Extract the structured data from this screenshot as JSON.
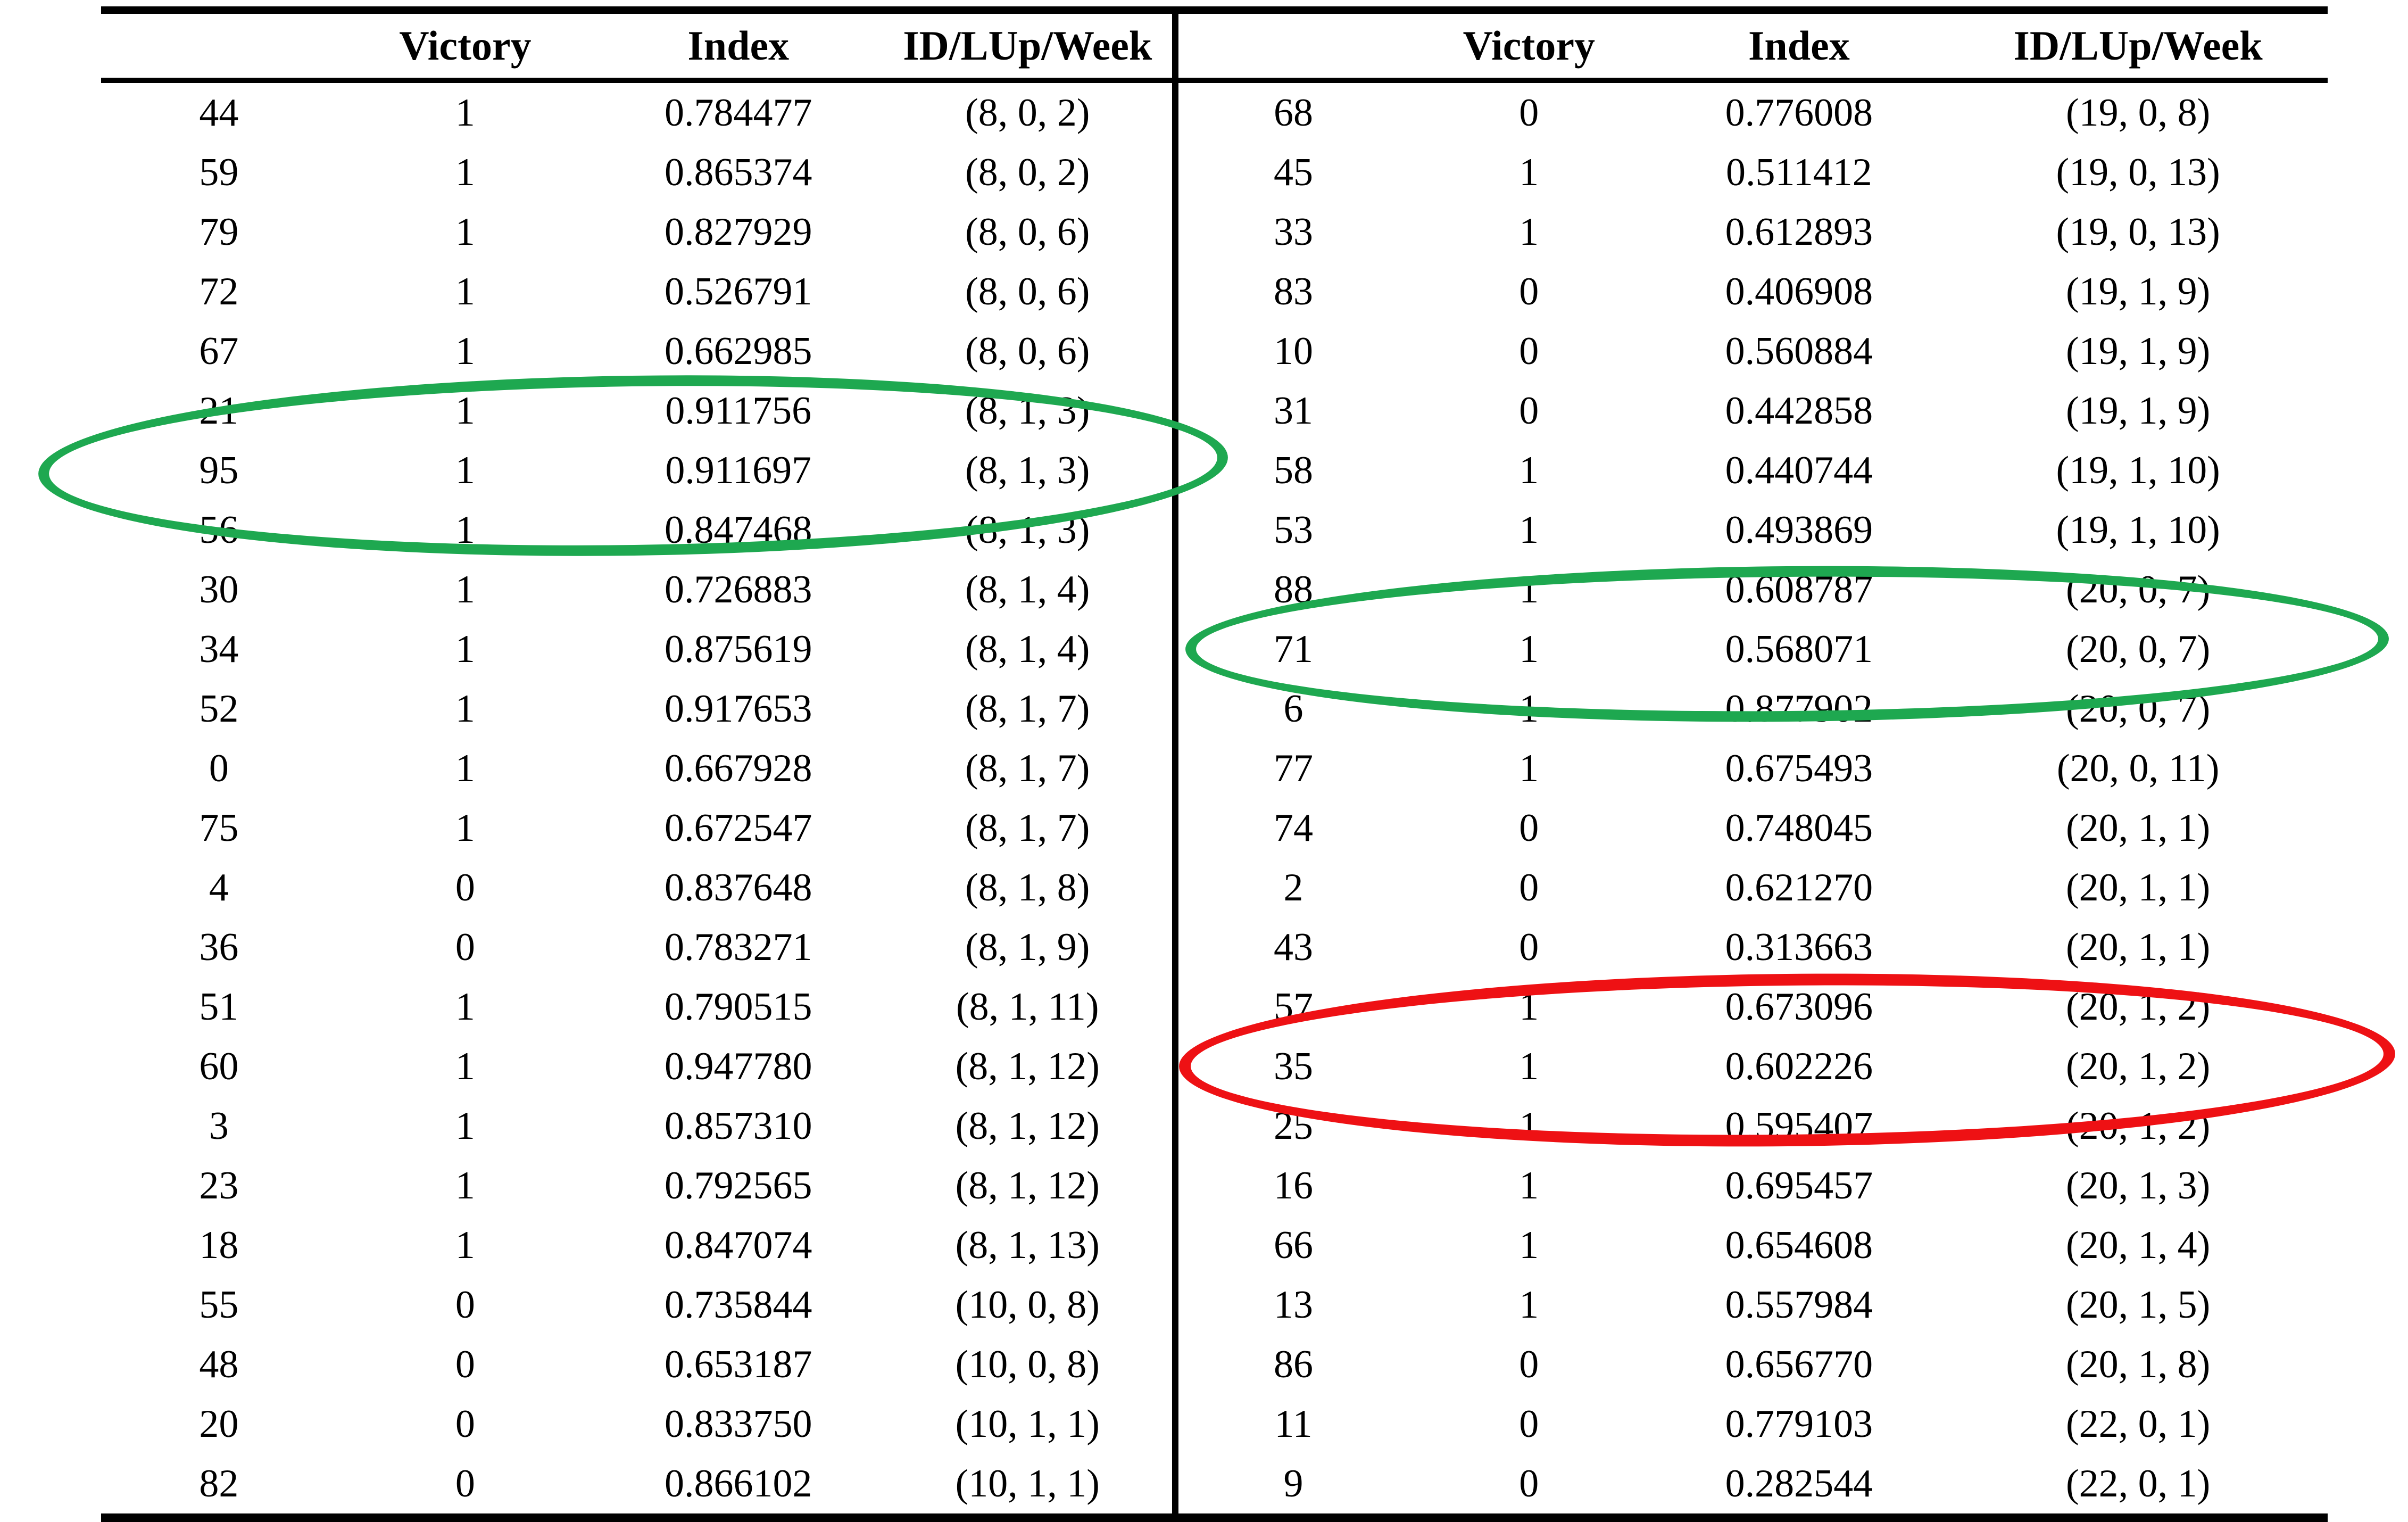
{
  "columns": {
    "id": "",
    "victory": "Victory",
    "index": "Index",
    "week": "ID/LUp/Week"
  },
  "left_table": {
    "rows": [
      {
        "id": "44",
        "victory": "1",
        "index": "0.784477",
        "week": "(8, 0, 2)"
      },
      {
        "id": "59",
        "victory": "1",
        "index": "0.865374",
        "week": "(8, 0, 2)"
      },
      {
        "id": "79",
        "victory": "1",
        "index": "0.827929",
        "week": "(8, 0, 6)"
      },
      {
        "id": "72",
        "victory": "1",
        "index": "0.526791",
        "week": "(8, 0, 6)"
      },
      {
        "id": "67",
        "victory": "1",
        "index": "0.662985",
        "week": "(8, 0, 6)"
      },
      {
        "id": "21",
        "victory": "1",
        "index": "0.911756",
        "week": "(8, 1, 3)"
      },
      {
        "id": "95",
        "victory": "1",
        "index": "0.911697",
        "week": "(8, 1, 3)"
      },
      {
        "id": "56",
        "victory": "1",
        "index": "0.847468",
        "week": "(8, 1, 3)"
      },
      {
        "id": "30",
        "victory": "1",
        "index": "0.726883",
        "week": "(8, 1, 4)"
      },
      {
        "id": "34",
        "victory": "1",
        "index": "0.875619",
        "week": "(8, 1, 4)"
      },
      {
        "id": "52",
        "victory": "1",
        "index": "0.917653",
        "week": "(8, 1, 7)"
      },
      {
        "id": "0",
        "victory": "1",
        "index": "0.667928",
        "week": "(8, 1, 7)"
      },
      {
        "id": "75",
        "victory": "1",
        "index": "0.672547",
        "week": "(8, 1, 7)"
      },
      {
        "id": "4",
        "victory": "0",
        "index": "0.837648",
        "week": "(8, 1, 8)"
      },
      {
        "id": "36",
        "victory": "0",
        "index": "0.783271",
        "week": "(8, 1, 9)"
      },
      {
        "id": "51",
        "victory": "1",
        "index": "0.790515",
        "week": "(8, 1, 11)"
      },
      {
        "id": "60",
        "victory": "1",
        "index": "0.947780",
        "week": "(8, 1, 12)"
      },
      {
        "id": "3",
        "victory": "1",
        "index": "0.857310",
        "week": "(8, 1, 12)"
      },
      {
        "id": "23",
        "victory": "1",
        "index": "0.792565",
        "week": "(8, 1, 12)"
      },
      {
        "id": "18",
        "victory": "1",
        "index": "0.847074",
        "week": "(8, 1, 13)"
      },
      {
        "id": "55",
        "victory": "0",
        "index": "0.735844",
        "week": "(10, 0, 8)"
      },
      {
        "id": "48",
        "victory": "0",
        "index": "0.653187",
        "week": "(10, 0, 8)"
      },
      {
        "id": "20",
        "victory": "0",
        "index": "0.833750",
        "week": "(10, 1, 1)"
      },
      {
        "id": "82",
        "victory": "0",
        "index": "0.866102",
        "week": "(10, 1, 1)"
      }
    ]
  },
  "right_table": {
    "rows": [
      {
        "id": "68",
        "victory": "0",
        "index": "0.776008",
        "week": "(19, 0, 8)"
      },
      {
        "id": "45",
        "victory": "1",
        "index": "0.511412",
        "week": "(19, 0, 13)"
      },
      {
        "id": "33",
        "victory": "1",
        "index": "0.612893",
        "week": "(19, 0, 13)"
      },
      {
        "id": "83",
        "victory": "0",
        "index": "0.406908",
        "week": "(19, 1, 9)"
      },
      {
        "id": "10",
        "victory": "0",
        "index": "0.560884",
        "week": "(19, 1, 9)"
      },
      {
        "id": "31",
        "victory": "0",
        "index": "0.442858",
        "week": "(19, 1, 9)"
      },
      {
        "id": "58",
        "victory": "1",
        "index": "0.440744",
        "week": "(19, 1, 10)"
      },
      {
        "id": "53",
        "victory": "1",
        "index": "0.493869",
        "week": "(19, 1, 10)"
      },
      {
        "id": "88",
        "victory": "1",
        "index": "0.608787",
        "week": "(20, 0, 7)"
      },
      {
        "id": "71",
        "victory": "1",
        "index": "0.568071",
        "week": "(20, 0, 7)"
      },
      {
        "id": "6",
        "victory": "1",
        "index": "0.877902",
        "week": "(20, 0, 7)"
      },
      {
        "id": "77",
        "victory": "1",
        "index": "0.675493",
        "week": "(20, 0, 11)"
      },
      {
        "id": "74",
        "victory": "0",
        "index": "0.748045",
        "week": "(20, 1, 1)"
      },
      {
        "id": "2",
        "victory": "0",
        "index": "0.621270",
        "week": "(20, 1, 1)"
      },
      {
        "id": "43",
        "victory": "0",
        "index": "0.313663",
        "week": "(20, 1, 1)"
      },
      {
        "id": "57",
        "victory": "1",
        "index": "0.673096",
        "week": "(20, 1, 2)"
      },
      {
        "id": "35",
        "victory": "1",
        "index": "0.602226",
        "week": "(20, 1, 2)"
      },
      {
        "id": "25",
        "victory": "1",
        "index": "0.595407",
        "week": "(20, 1, 2)"
      },
      {
        "id": "16",
        "victory": "1",
        "index": "0.695457",
        "week": "(20, 1, 3)"
      },
      {
        "id": "66",
        "victory": "1",
        "index": "0.654608",
        "week": "(20, 1, 4)"
      },
      {
        "id": "13",
        "victory": "1",
        "index": "0.557984",
        "week": "(20, 1, 5)"
      },
      {
        "id": "86",
        "victory": "0",
        "index": "0.656770",
        "week": "(20, 1, 8)"
      },
      {
        "id": "11",
        "victory": "0",
        "index": "0.779103",
        "week": "(22, 0, 1)"
      },
      {
        "id": "9",
        "victory": "0",
        "index": "0.282544",
        "week": "(22, 0, 1)"
      }
    ]
  },
  "highlights": {
    "ellipses": [
      {
        "key": "green-left",
        "color": "#1ea850",
        "table": "left",
        "circled_ids": "21, 95, 56",
        "circled_group": "(8, 1, 3)"
      },
      {
        "key": "green-right",
        "color": "#1ea850",
        "table": "right",
        "circled_ids": "88, 71, 6",
        "circled_group": "(20, 0, 7)"
      },
      {
        "key": "red",
        "color": "#ee1114",
        "table": "right",
        "circled_ids": "57, 35, 25",
        "circled_group": "(20, 1, 2)"
      }
    ]
  },
  "rules": {
    "line_color": "#000000",
    "background": "#ffffff"
  }
}
